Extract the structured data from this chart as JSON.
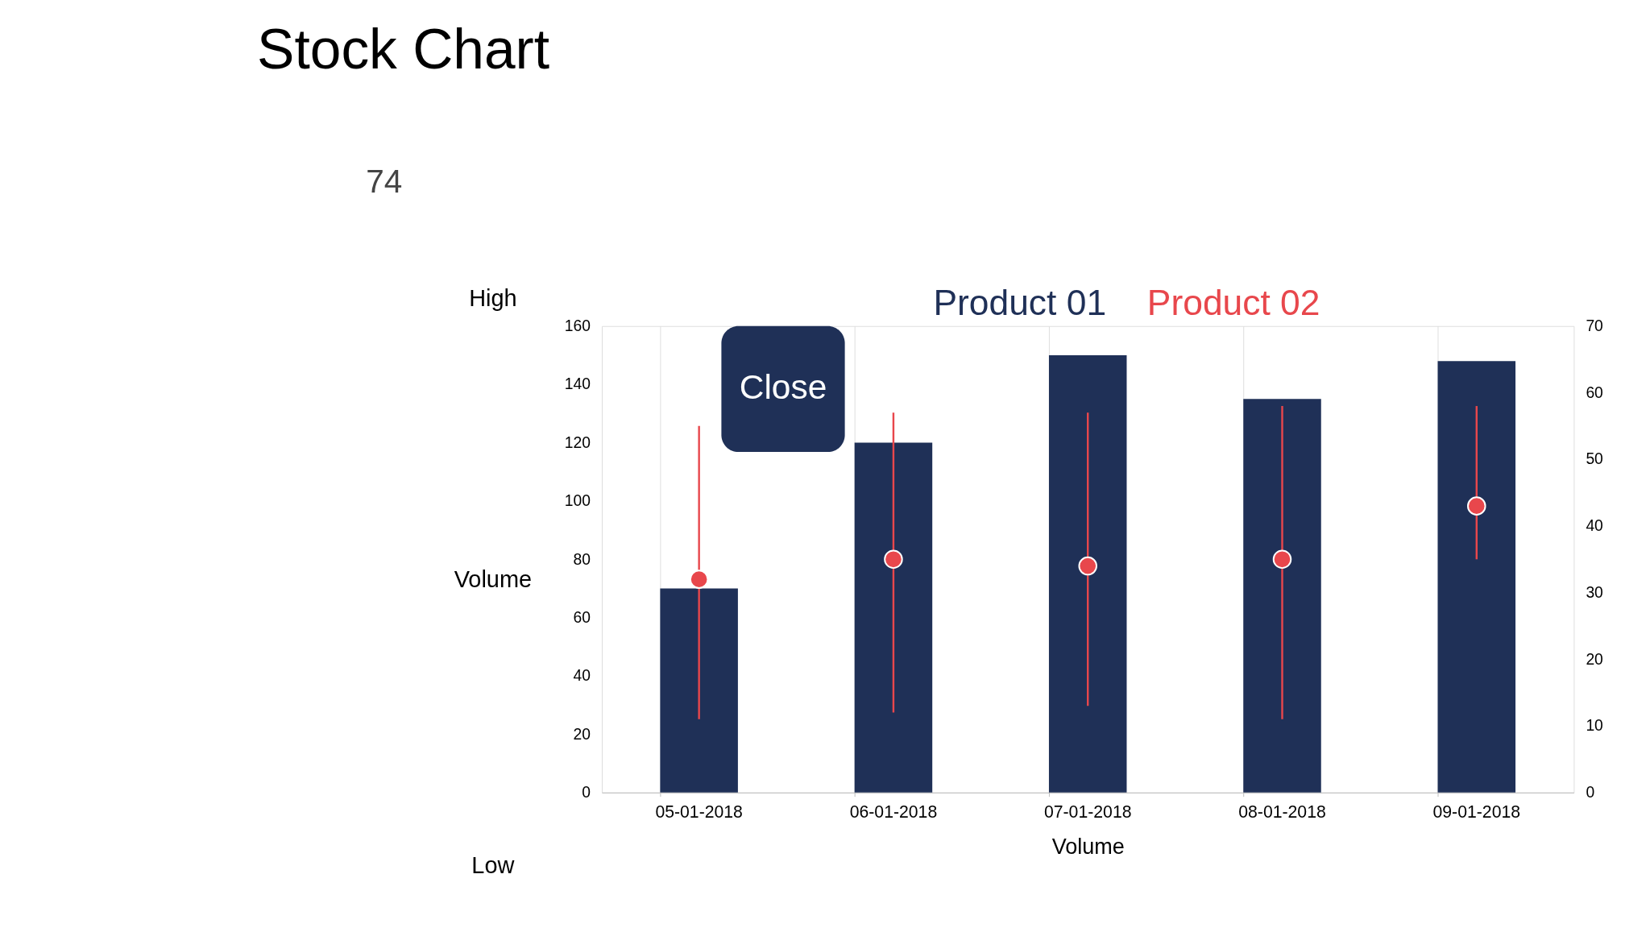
{
  "chart_data": {
    "type": "bar",
    "title": "Stock Chart",
    "xlabel": "Volume",
    "ylabel": "Volume",
    "categories": [
      "05-01-2018",
      "06-01-2018",
      "07-01-2018",
      "08-01-2018",
      "09-01-2018"
    ],
    "series": [
      {
        "name": "Product 01",
        "color": "#1f3057",
        "values": [
          70,
          120,
          150,
          135,
          148
        ]
      },
      {
        "name": "Product 02",
        "type": "scatter",
        "axis": "y2",
        "color": "#e8474c",
        "values": [
          32,
          35,
          34,
          35,
          43
        ],
        "errors": [
          [
            11,
            55
          ],
          [
            12,
            57
          ],
          [
            13,
            57
          ],
          [
            11,
            58
          ],
          [
            35,
            58
          ]
        ]
      }
    ],
    "ylim": [
      0,
      160
    ],
    "yticks": [
      0,
      20,
      40,
      60,
      80,
      100,
      120,
      140,
      160
    ],
    "y2lim": [
      0,
      70
    ],
    "y2ticks": [
      0,
      10,
      20,
      30,
      40,
      50,
      60,
      70
    ],
    "grid": "x",
    "legend": "top",
    "marker": "circle",
    "annotations": [
      "74",
      "High",
      "Low",
      "Close"
    ]
  }
}
